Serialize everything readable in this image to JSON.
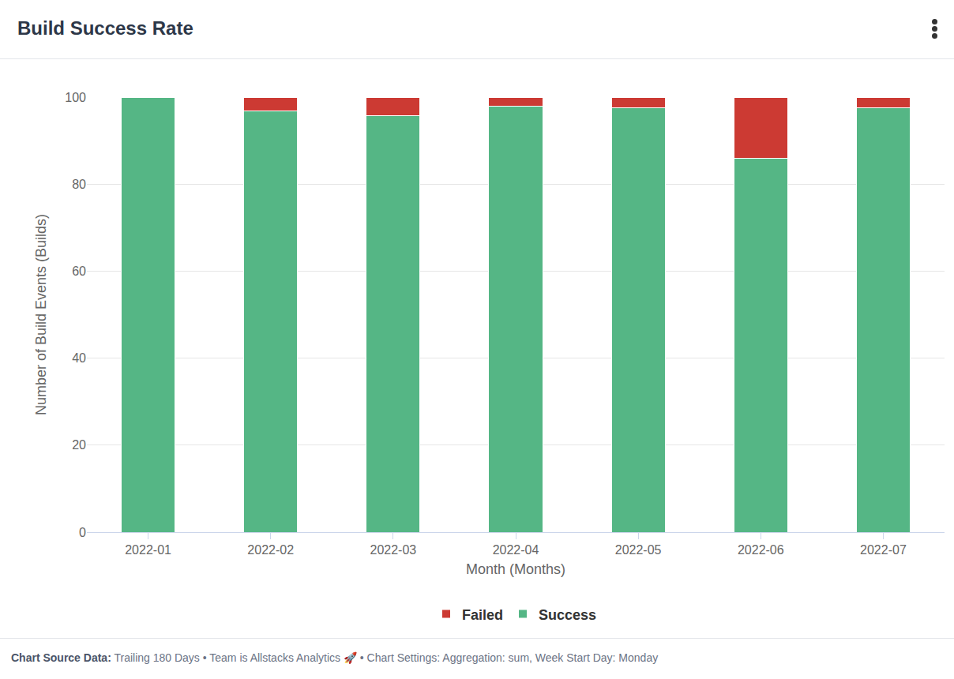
{
  "chart_data": {
    "type": "bar",
    "stacked": true,
    "title": "Build Success Rate",
    "x_label": "Month (Months)",
    "y_label": "Number of Build Events (Builds)",
    "categories": [
      "2022-01",
      "2022-02",
      "2022-03",
      "2022-04",
      "2022-05",
      "2022-06",
      "2022-07"
    ],
    "series": [
      {
        "name": "Success",
        "color": "#55b685",
        "values": [
          100,
          96.8,
          95.7,
          98.0,
          97.5,
          85.9,
          97.5
        ]
      },
      {
        "name": "Failed",
        "color": "#cc3a33",
        "values": [
          0,
          3.2,
          4.3,
          2.0,
          2.5,
          14.1,
          2.5
        ]
      }
    ],
    "ylim": [
      0,
      100
    ],
    "yticks": [
      0,
      20,
      40,
      60,
      80,
      100
    ],
    "grid": true,
    "legend": "bottom",
    "footer": {
      "label": "Chart Source Data:",
      "text": "Trailing 180 Days • Team is Allstacks Analytics 🚀 • Chart Settings: Aggregation: sum, Week Start Day: Monday"
    }
  }
}
